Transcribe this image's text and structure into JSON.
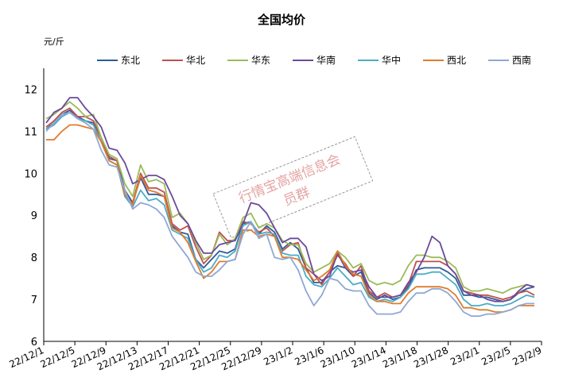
{
  "chart_data": {
    "type": "line",
    "title": "全国均价",
    "ylabel": "元/斤",
    "ylim": [
      6,
      12.5
    ],
    "yticks": [
      6,
      7,
      8,
      9,
      10,
      11,
      12
    ],
    "xticks": [
      "22/12/1",
      "22/12/5",
      "22/12/9",
      "22/12/13",
      "22/12/17",
      "22/12/21",
      "22/12/25",
      "22/12/29",
      "23/1/2",
      "23/1/6",
      "23/1/10",
      "23/1/14",
      "23/1/18",
      "23/1/28",
      "23/2/1",
      "23/2/5",
      "23/2/9"
    ],
    "legend_position": "top",
    "watermark": [
      "行情宝高端信息会",
      "员群"
    ],
    "series": [
      {
        "name": "东北",
        "color": "#2e5b9a",
        "values": [
          11.05,
          11.2,
          11.4,
          11.5,
          11.35,
          11.25,
          11.2,
          10.85,
          10.35,
          10.3,
          9.6,
          9.3,
          9.9,
          9.5,
          9.5,
          9.45,
          8.75,
          8.6,
          8.55,
          7.95,
          7.75,
          7.95,
          8.15,
          8.1,
          8.2,
          8.8,
          8.85,
          8.55,
          8.75,
          8.6,
          8.2,
          8.35,
          8.2,
          7.75,
          7.4,
          7.4,
          7.65,
          7.8,
          7.75,
          7.55,
          7.65,
          7.15,
          7.0,
          7.1,
          7.0,
          7.05,
          7.3,
          7.7,
          7.75,
          7.75,
          7.75,
          7.65,
          7.5,
          7.1,
          7.1,
          7.05,
          7.05,
          7.0,
          6.95,
          7.0,
          7.15,
          7.25,
          7.3
        ]
      },
      {
        "name": "华北",
        "color": "#c0504d",
        "values": [
          11.1,
          11.25,
          11.45,
          11.55,
          11.35,
          11.35,
          11.25,
          10.85,
          10.4,
          10.3,
          9.45,
          9.3,
          10.0,
          9.65,
          9.65,
          9.55,
          8.8,
          8.65,
          8.75,
          8.25,
          7.85,
          8.05,
          8.6,
          8.4,
          8.4,
          8.85,
          8.8,
          8.6,
          8.7,
          8.5,
          8.15,
          8.3,
          8.35,
          7.75,
          7.6,
          7.35,
          7.65,
          8.05,
          7.85,
          7.55,
          7.8,
          7.2,
          7.05,
          7.15,
          7.05,
          7.1,
          7.35,
          7.9,
          7.9,
          7.9,
          7.9,
          7.8,
          7.6,
          7.2,
          7.15,
          7.1,
          7.1,
          7.05,
          7.0,
          7.05,
          7.15,
          7.2,
          7.1
        ]
      },
      {
        "name": "华东",
        "color": "#9bbb59",
        "values": [
          11.3,
          11.4,
          11.55,
          11.7,
          11.55,
          11.35,
          11.4,
          10.85,
          10.45,
          10.35,
          9.75,
          9.45,
          10.2,
          9.8,
          9.85,
          9.75,
          8.95,
          9.05,
          8.8,
          8.35,
          7.95,
          8.05,
          8.55,
          8.3,
          8.45,
          8.95,
          9.05,
          8.7,
          8.8,
          8.7,
          8.4,
          8.3,
          8.3,
          7.85,
          7.65,
          7.75,
          7.85,
          8.15,
          8.0,
          7.75,
          7.85,
          7.45,
          7.35,
          7.4,
          7.35,
          7.45,
          7.8,
          8.05,
          8.05,
          8.0,
          8.0,
          7.9,
          7.75,
          7.3,
          7.2,
          7.2,
          7.25,
          7.2,
          7.15,
          7.25,
          7.3,
          7.35,
          7.3
        ]
      },
      {
        "name": "华南",
        "color": "#6c4a9a",
        "values": [
          11.2,
          11.45,
          11.55,
          11.8,
          11.8,
          11.55,
          11.35,
          11.1,
          10.6,
          10.55,
          10.25,
          9.75,
          9.85,
          9.95,
          9.95,
          9.85,
          9.45,
          9.0,
          8.8,
          8.4,
          8.1,
          8.1,
          8.3,
          8.35,
          8.4,
          8.8,
          9.3,
          9.25,
          9.05,
          8.7,
          8.35,
          8.45,
          8.45,
          8.25,
          7.6,
          7.45,
          7.55,
          8.1,
          7.75,
          7.65,
          7.7,
          7.3,
          7.05,
          7.05,
          7.05,
          7.1,
          7.4,
          7.65,
          8.0,
          8.5,
          8.35,
          7.8,
          7.6,
          7.2,
          7.1,
          7.1,
          7.0,
          6.95,
          6.95,
          7.0,
          7.2,
          7.35,
          7.3
        ]
      },
      {
        "name": "华中",
        "color": "#4bacc6",
        "values": [
          11.05,
          11.15,
          11.35,
          11.45,
          11.3,
          11.25,
          11.15,
          10.75,
          10.3,
          10.2,
          9.45,
          9.2,
          9.6,
          9.35,
          9.4,
          9.25,
          8.65,
          8.55,
          8.45,
          7.95,
          7.65,
          7.75,
          8.05,
          8.0,
          8.15,
          8.75,
          8.85,
          8.55,
          8.6,
          8.55,
          8.1,
          8.05,
          8.05,
          7.55,
          7.35,
          7.3,
          7.5,
          7.75,
          7.55,
          7.35,
          7.4,
          7.05,
          6.95,
          7.0,
          6.95,
          7.05,
          7.25,
          7.6,
          7.6,
          7.65,
          7.65,
          7.5,
          7.35,
          7.0,
          6.85,
          6.85,
          6.9,
          6.85,
          6.85,
          6.9,
          7.0,
          7.1,
          7.05
        ]
      },
      {
        "name": "西北",
        "color": "#e07b2c",
        "values": [
          10.8,
          10.8,
          11.0,
          11.15,
          11.15,
          11.1,
          11.05,
          10.75,
          10.3,
          10.2,
          9.5,
          9.25,
          9.95,
          9.6,
          9.55,
          9.45,
          8.7,
          8.6,
          8.35,
          7.9,
          7.5,
          7.65,
          7.9,
          7.9,
          7.95,
          8.65,
          8.65,
          8.5,
          8.55,
          8.5,
          8.0,
          8.0,
          7.95,
          7.7,
          7.45,
          7.55,
          7.7,
          8.15,
          7.8,
          7.6,
          7.55,
          7.1,
          6.95,
          6.95,
          6.9,
          6.9,
          7.15,
          7.3,
          7.3,
          7.3,
          7.3,
          7.25,
          7.1,
          6.8,
          6.8,
          6.75,
          6.75,
          6.7,
          6.7,
          6.75,
          6.85,
          6.85,
          6.85
        ]
      },
      {
        "name": "西南",
        "color": "#8fa8d4",
        "values": [
          11.0,
          11.2,
          11.4,
          11.45,
          11.3,
          11.2,
          11.05,
          10.55,
          10.2,
          10.15,
          9.6,
          9.15,
          9.3,
          9.25,
          9.15,
          8.95,
          8.5,
          8.25,
          8.0,
          7.65,
          7.55,
          7.55,
          7.7,
          7.9,
          7.95,
          8.55,
          8.85,
          8.45,
          8.55,
          8.0,
          7.95,
          8.0,
          7.7,
          7.2,
          6.85,
          7.1,
          7.5,
          7.45,
          7.25,
          7.2,
          7.2,
          6.85,
          6.65,
          6.65,
          6.65,
          6.7,
          6.95,
          7.15,
          7.15,
          7.25,
          7.25,
          7.15,
          6.95,
          6.7,
          6.6,
          6.6,
          6.65,
          6.65,
          6.7,
          6.75,
          6.85,
          6.9,
          6.9
        ]
      }
    ]
  }
}
